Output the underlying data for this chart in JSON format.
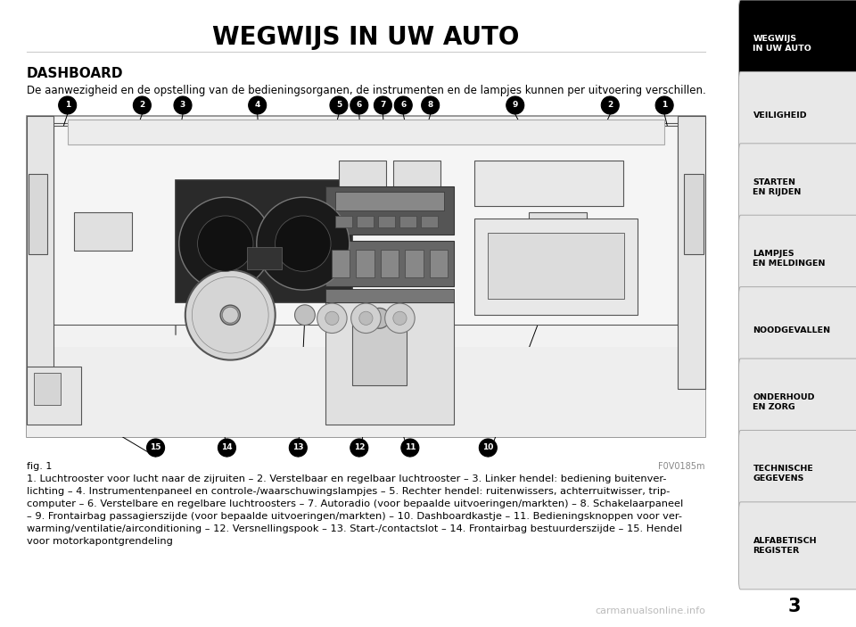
{
  "title": "WEGWIJS IN UW AUTO",
  "section_title": "DASHBOARD",
  "intro_text": "De aanwezigheid en de opstelling van de bedieningsorganen, de instrumenten en de lampjes kunnen per uitvoering verschillen.",
  "caption": "fig. 1",
  "watermark": "F0V0185m",
  "description_text": "1. Luchtrooster voor lucht naar de zijruiten – 2. Verstelbaar en regelbaar luchtrooster – 3. Linker hendel: bediening buitenver-\nlichting – 4. Instrumentenpaneel en controle-/waarschuwingslampjes – 5. Rechter hendel: ruitenwissers, achterruitwisser, trip-\ncomputer – 6. Verstelbare en regelbare luchtroosters – 7. Autoradio (voor bepaalde uitvoeringen/markten) – 8. Schakelaarpaneel\n– 9. Frontairbag passagierszijde (voor bepaalde uitvoeringen/markten) – 10. Dashboardkastje – 11. Bedieningsknoppen voor ver-\nwarming/ventilatie/airconditioning – 12. Versnellingspook – 13. Start-/contactslot – 14. Frontairbag bestuurderszijde – 15. Hendel\nvoor motorkapontgrendeling",
  "sidebar_items": [
    {
      "text": "WEGWIJS\nIN UW AUTO",
      "active": true
    },
    {
      "text": "VEILIGHEID",
      "active": false
    },
    {
      "text": "STARTEN\nEN RIJDEN",
      "active": false
    },
    {
      "text": "LAMPJES\nEN MELDINGEN",
      "active": false
    },
    {
      "text": "NOODGEVALLEN",
      "active": false
    },
    {
      "text": "ONDERHOUD\nEN ZORG",
      "active": false
    },
    {
      "text": "TECHNISCHE\nGEGEVENS",
      "active": false
    },
    {
      "text": "ALFABETISCH\nREGISTER",
      "active": false
    }
  ],
  "page_number": "3",
  "bg_color": "#ffffff",
  "sidebar_active_bg": "#000000",
  "sidebar_active_fg": "#ffffff",
  "sidebar_inactive_bg": "#e8e8e8",
  "sidebar_inactive_fg": "#000000",
  "sidebar_border": "#aaaaaa",
  "title_color": "#000000",
  "text_color": "#000000",
  "dash_bg": "#f0f0f0",
  "dash_inner": "#e8e8e8",
  "line_color": "#555555",
  "dark_color": "#333333"
}
